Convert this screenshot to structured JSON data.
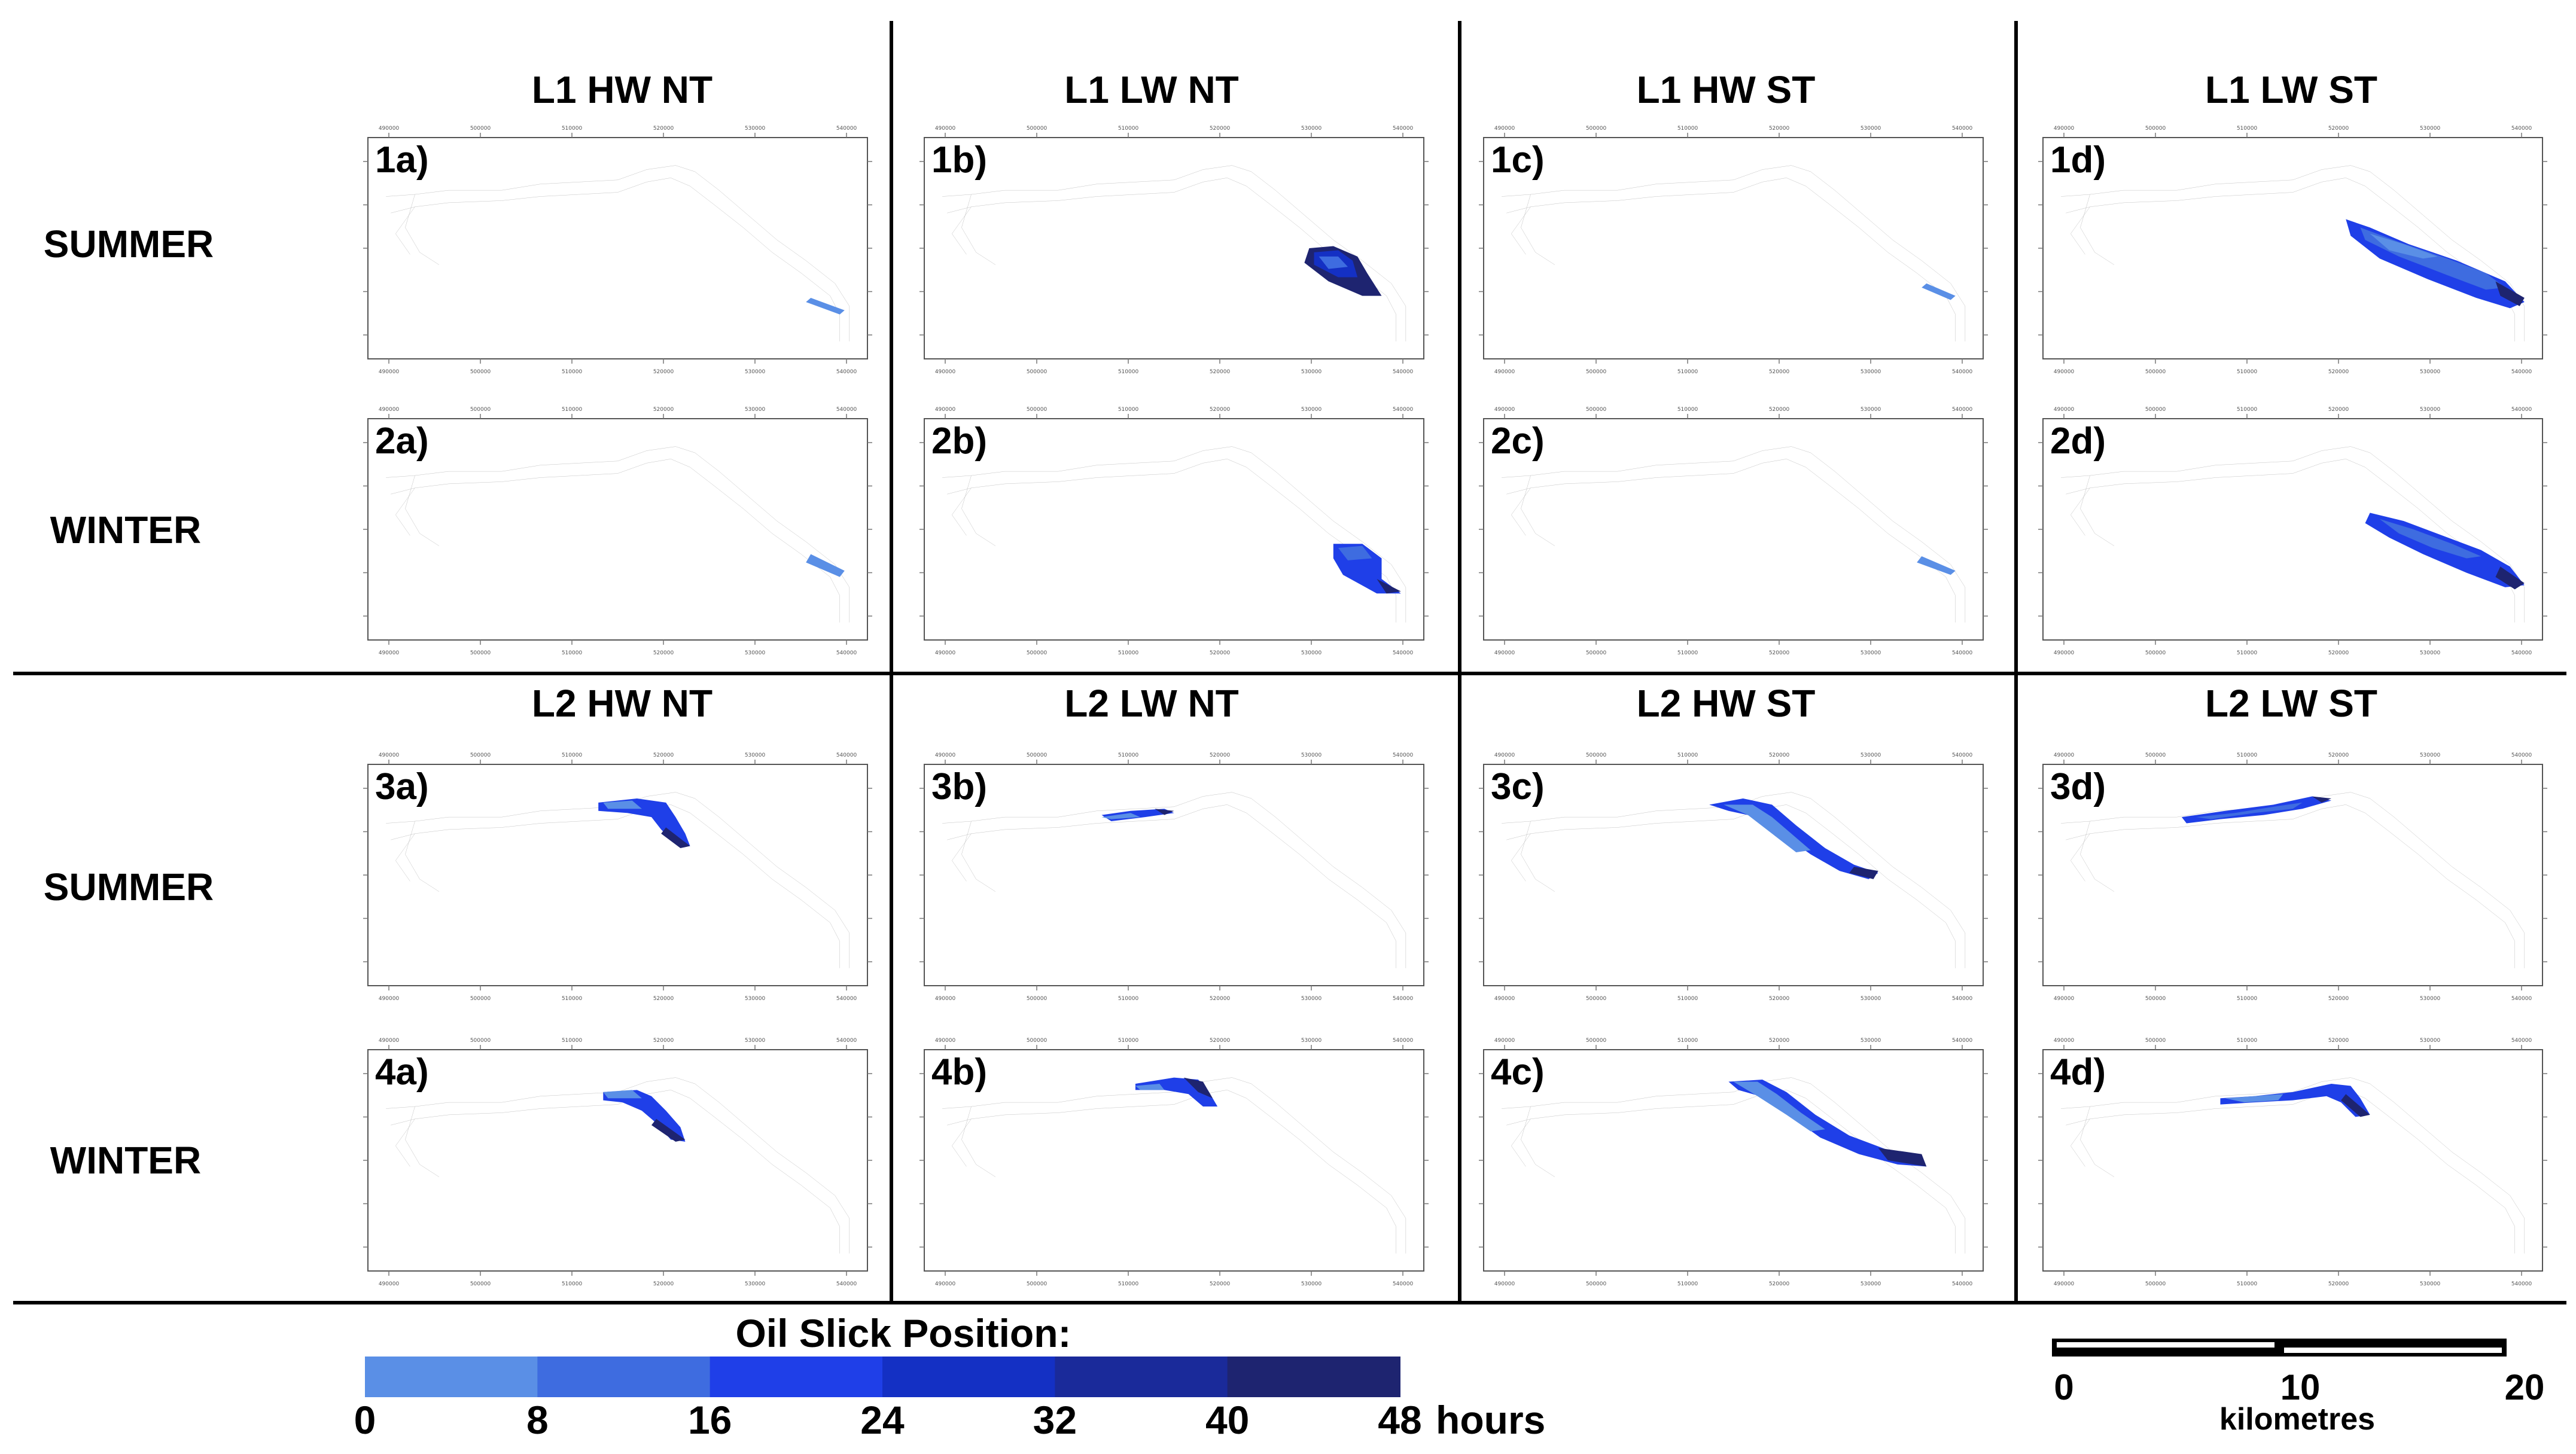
{
  "columns": [
    {
      "id": "c1",
      "label": "L1 HW NT"
    },
    {
      "id": "c2",
      "label": "L1 LW NT"
    },
    {
      "id": "c3",
      "label": "L1 HW ST"
    },
    {
      "id": "c4",
      "label": "L1 LW ST"
    },
    {
      "id": "c5",
      "label": "L2 HW NT"
    },
    {
      "id": "c6",
      "label": "L2 LW NT"
    },
    {
      "id": "c7",
      "label": "L2 HW ST"
    },
    {
      "id": "c8",
      "label": "L2 LW ST"
    }
  ],
  "rows": [
    {
      "id": "r1",
      "label": "SUMMER"
    },
    {
      "id": "r2",
      "label": "WINTER"
    },
    {
      "id": "r3",
      "label": "SUMMER"
    },
    {
      "id": "r4",
      "label": "WINTER"
    }
  ],
  "panels": [
    {
      "id": "1a",
      "label": "1a)",
      "slick": "S1a"
    },
    {
      "id": "1b",
      "label": "1b)",
      "slick": "S1b"
    },
    {
      "id": "1c",
      "label": "1c)",
      "slick": "S1c"
    },
    {
      "id": "1d",
      "label": "1d)",
      "slick": "S1d"
    },
    {
      "id": "2a",
      "label": "2a)",
      "slick": "S2a"
    },
    {
      "id": "2b",
      "label": "2b)",
      "slick": "S2b"
    },
    {
      "id": "2c",
      "label": "2c)",
      "slick": "S2c"
    },
    {
      "id": "2d",
      "label": "2d)",
      "slick": "S2d"
    },
    {
      "id": "3a",
      "label": "3a)",
      "slick": "S3a"
    },
    {
      "id": "3b",
      "label": "3b)",
      "slick": "S3b"
    },
    {
      "id": "3c",
      "label": "3c)",
      "slick": "S3c"
    },
    {
      "id": "3d",
      "label": "3d)",
      "slick": "S3d"
    },
    {
      "id": "4a",
      "label": "4a)",
      "slick": "S4a"
    },
    {
      "id": "4b",
      "label": "4b)",
      "slick": "S4b"
    },
    {
      "id": "4c",
      "label": "4c)",
      "slick": "S4c"
    },
    {
      "id": "4d",
      "label": "4d)",
      "slick": "S4d"
    }
  ],
  "legend": {
    "title": "Oil Slick Position:",
    "unit": "hours",
    "breaks": [
      "0",
      "8",
      "16",
      "24",
      "32",
      "40",
      "48"
    ],
    "colors": [
      "#5a8fe6",
      "#3e6ce0",
      "#1f3fe8",
      "#1430c4",
      "#1a2a9a",
      "#1e2470"
    ]
  },
  "scale_bar": {
    "labels": [
      "0",
      "10",
      "20"
    ],
    "unit": "kilometres"
  }
}
